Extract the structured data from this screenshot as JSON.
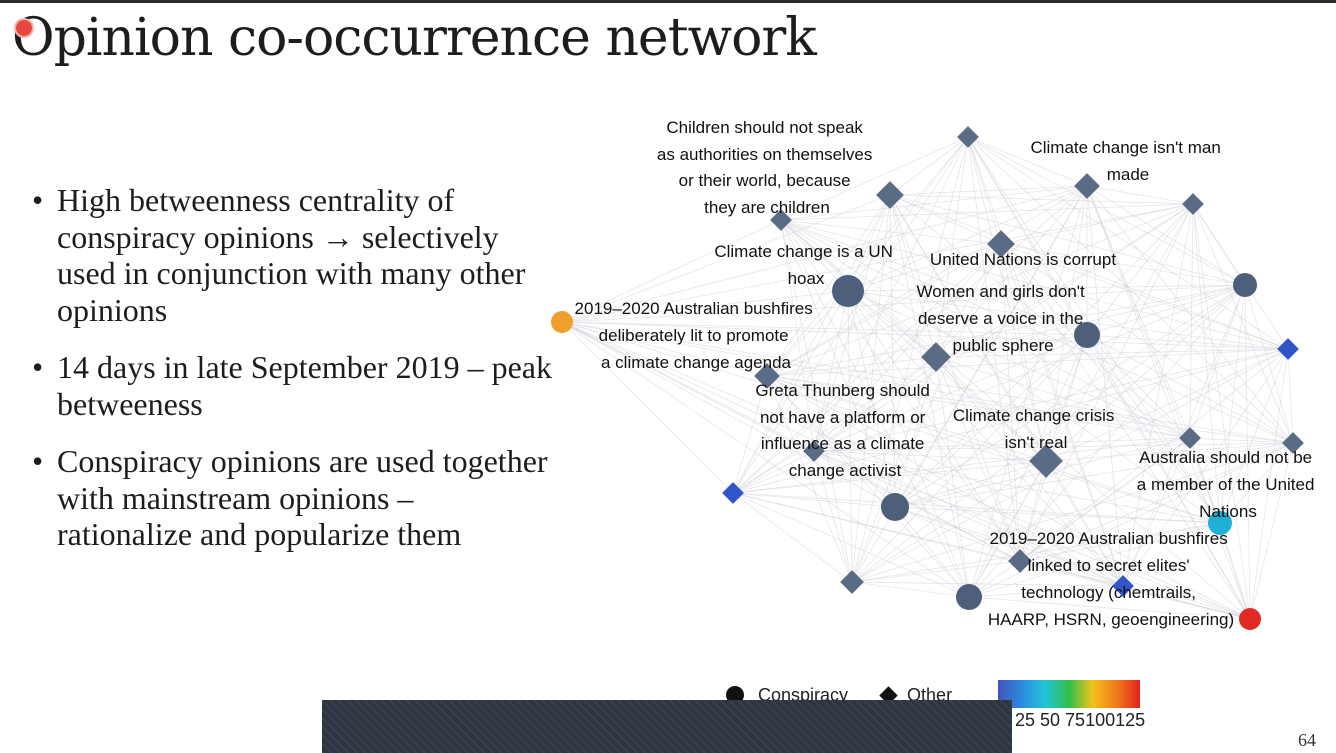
{
  "slide": {
    "title": "Opinion co-occurrence network",
    "page_number": "64",
    "bullets": [
      "High betweenness centrality of conspiracy opinions → selectively used in conjunction with many other opinions",
      "14 days in late September 2019 – peak betweeness",
      "Conspiracy opinions are used together with mainstream opinions – rationalize and popularize them"
    ]
  },
  "network": {
    "node_labels": [
      "Children should not speak as authorities on themselves or their world, because they are children",
      "Climate change isn't man made",
      "Climate change is a UN hoax",
      "United Nations is corrupt",
      "2019–2020 Australian bushfires deliberately lit to promote a climate change agenda",
      "Women and girls don't deserve a voice in the public sphere",
      "Greta Thunberg should not have a platform or influence as a climate change activist",
      "Climate change crisis isn't real",
      "Australia should not be a member of the United Nations",
      "2019–2020 Australian bushfires linked to secret elites' technology (chemtrails, HAARP, HSRN, geoengineering)"
    ],
    "legend": {
      "conspiracy": "Conspiracy",
      "other": "Other"
    },
    "colorbar_ticks": "25 50 75100125"
  }
}
